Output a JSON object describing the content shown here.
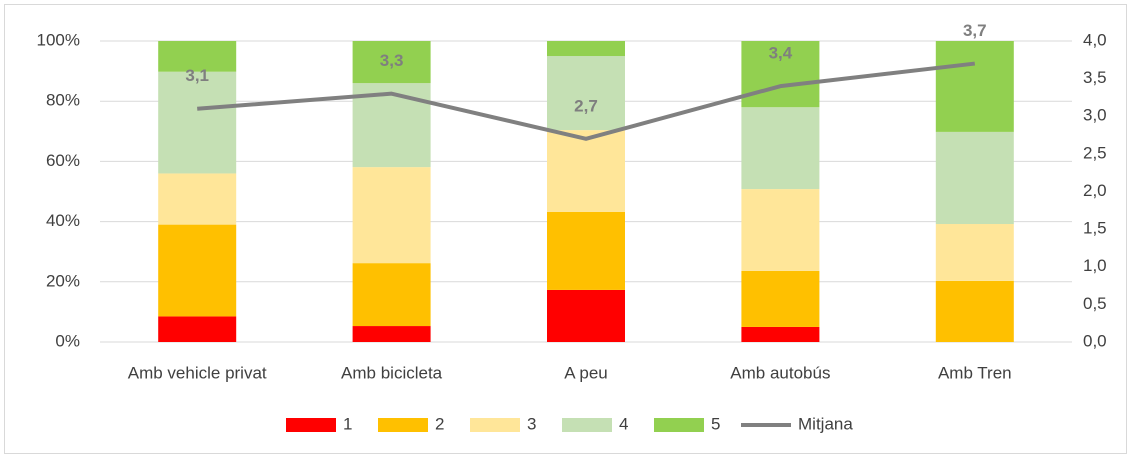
{
  "chart_data": {
    "type": "bar",
    "stacked": true,
    "categories": [
      "Amb vehicle privat",
      "Amb bicicleta",
      "A peu",
      "Amb autobús",
      "Amb Tren"
    ],
    "series": [
      {
        "name": "1",
        "color": "#ff0000",
        "values": [
          8.5,
          5.3,
          17.3,
          5,
          0
        ]
      },
      {
        "name": "2",
        "color": "#ffc000",
        "values": [
          30.5,
          20.9,
          25.9,
          18.6,
          20.3
        ]
      },
      {
        "name": "3",
        "color": "#ffe699",
        "values": [
          17,
          31.9,
          27.2,
          27.2,
          18.9
        ]
      },
      {
        "name": "4",
        "color": "#c5e0b4",
        "values": [
          33.8,
          27.9,
          24.6,
          27.2,
          30.6
        ]
      },
      {
        "name": "5",
        "color": "#92d050",
        "values": [
          10.2,
          14,
          5,
          22,
          30.2
        ]
      },
      {
        "name": "Mitjana",
        "color": "#808080",
        "type": "line",
        "axis": "y2",
        "values": [
          3.1,
          3.3,
          2.7,
          3.4,
          3.7
        ],
        "value_labels": [
          "3,1",
          "3,3",
          "2,7",
          "3,4",
          "3,7"
        ]
      }
    ],
    "ylim": [
      0,
      100
    ],
    "yticks": [
      {
        "value": 0,
        "label": "0%"
      },
      {
        "value": 20,
        "label": "20%"
      },
      {
        "value": 40,
        "label": "40%"
      },
      {
        "value": 60,
        "label": "60%"
      },
      {
        "value": 80,
        "label": "80%"
      },
      {
        "value": 100,
        "label": "100%"
      }
    ],
    "y2lim": [
      0,
      4
    ],
    "y2ticks": [
      {
        "value": 0,
        "label": "0,0"
      },
      {
        "value": 0.5,
        "label": "0,5"
      },
      {
        "value": 1,
        "label": "1,0"
      },
      {
        "value": 1.5,
        "label": "1,5"
      },
      {
        "value": 2,
        "label": "2,0"
      },
      {
        "value": 2.5,
        "label": "2,5"
      },
      {
        "value": 3,
        "label": "3,0"
      },
      {
        "value": 3.5,
        "label": "3,5"
      },
      {
        "value": 4,
        "label": "4,0"
      }
    ],
    "grid": true,
    "legend": "bottom"
  }
}
